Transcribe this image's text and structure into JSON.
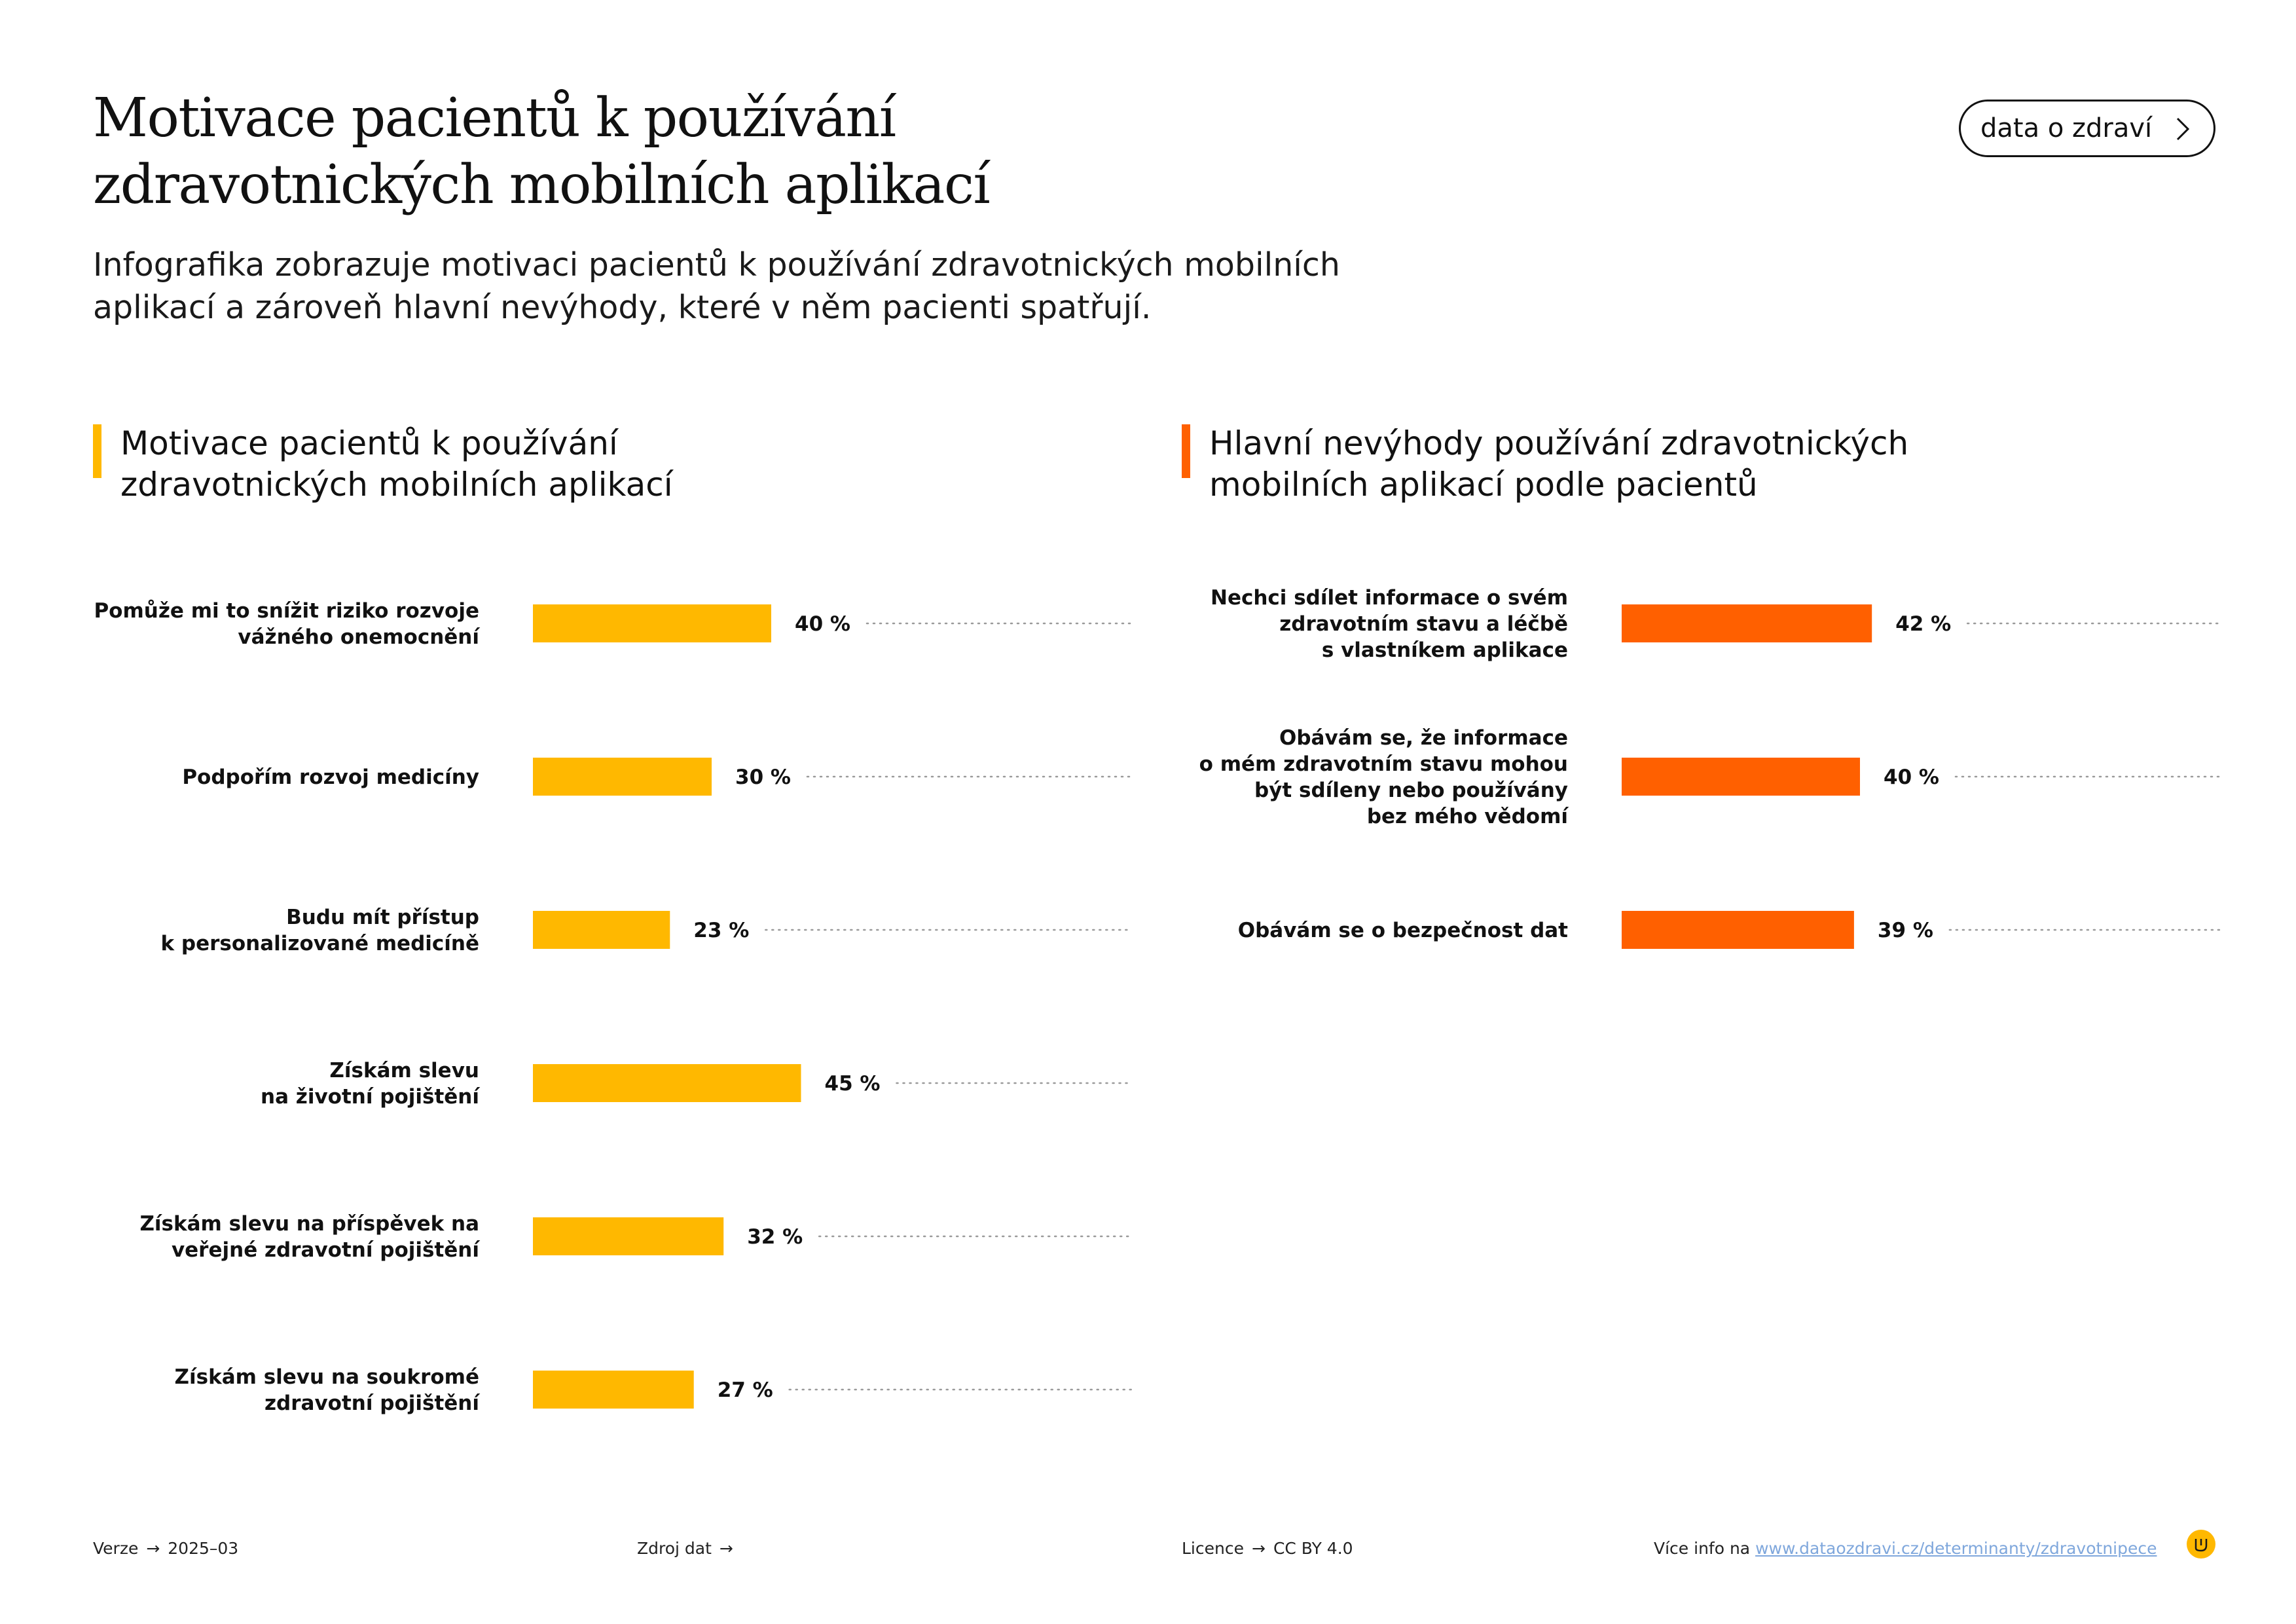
{
  "title": {
    "line1": "Motivace pacientů k používání",
    "line2": "zdravotnických mobilních aplikací"
  },
  "subtitle": {
    "line1": "Infografika zobrazuje motivaci pacientů k používání zdravotnických mobilních",
    "line2": "aplikací a zároveň hlavní nevýhody, které v něm pacienti spatřují."
  },
  "nav_button": {
    "label": "data o zdraví",
    "icon": "chevron-right-icon"
  },
  "colors": {
    "motivation": "#FFB800",
    "disadvantages": "#FF6000",
    "text": "#111111",
    "link": "#7FA7DC"
  },
  "chart_data": [
    {
      "type": "bar",
      "orientation": "horizontal",
      "title_lines": [
        "Motivace pacientů k používání",
        "zdravotnických mobilních aplikací"
      ],
      "unit": "%",
      "color": "#FFB800",
      "xlim": [
        0,
        100
      ],
      "grid": false,
      "categories": [
        [
          "Pomůže mi to snížit riziko rozvoje",
          "vážného onemocnění"
        ],
        [
          "Podpořím rozvoj medicíny"
        ],
        [
          "Budu mít přístup",
          "k personalizované medicíně"
        ],
        [
          "Získám slevu",
          "na životní pojištění"
        ],
        [
          "Získám slevu na příspěvek na",
          "veřejné zdravotní pojištění"
        ],
        [
          "Získám slevu na soukromé",
          "zdravotní pojištění"
        ]
      ],
      "values": [
        40,
        30,
        23,
        45,
        32,
        27
      ],
      "value_labels": [
        "40 %",
        "30 %",
        "23 %",
        "45 %",
        "32 %",
        "27 %"
      ]
    },
    {
      "type": "bar",
      "orientation": "horizontal",
      "title_lines": [
        "Hlavní nevýhody používání zdravotnických",
        "mobilních aplikací podle pacientů"
      ],
      "unit": "%",
      "color": "#FF6000",
      "xlim": [
        0,
        100
      ],
      "grid": false,
      "categories": [
        [
          "Nechci sdílet informace o svém",
          "zdravotním stavu a léčbě",
          "s vlastníkem aplikace"
        ],
        [
          "Obávám se, že informace",
          "o mém zdravotním stavu mohou",
          "být sdíleny nebo používány",
          "bez mého vědomí"
        ],
        [
          "Obávám se o bezpečnost dat"
        ]
      ],
      "values": [
        42,
        40,
        39
      ],
      "value_labels": [
        "42 %",
        "40 %",
        "39 %"
      ]
    }
  ],
  "footer": {
    "version_label": "Verze",
    "version_value": "2025–03",
    "source_label": "Zdroj dat",
    "license_label": "Licence",
    "license_value": "CC BY 4.0",
    "more_label": "Více info na",
    "more_link": "www.dataozdravi.cz/determinanty/zdravotnipece",
    "arrow": "→"
  }
}
